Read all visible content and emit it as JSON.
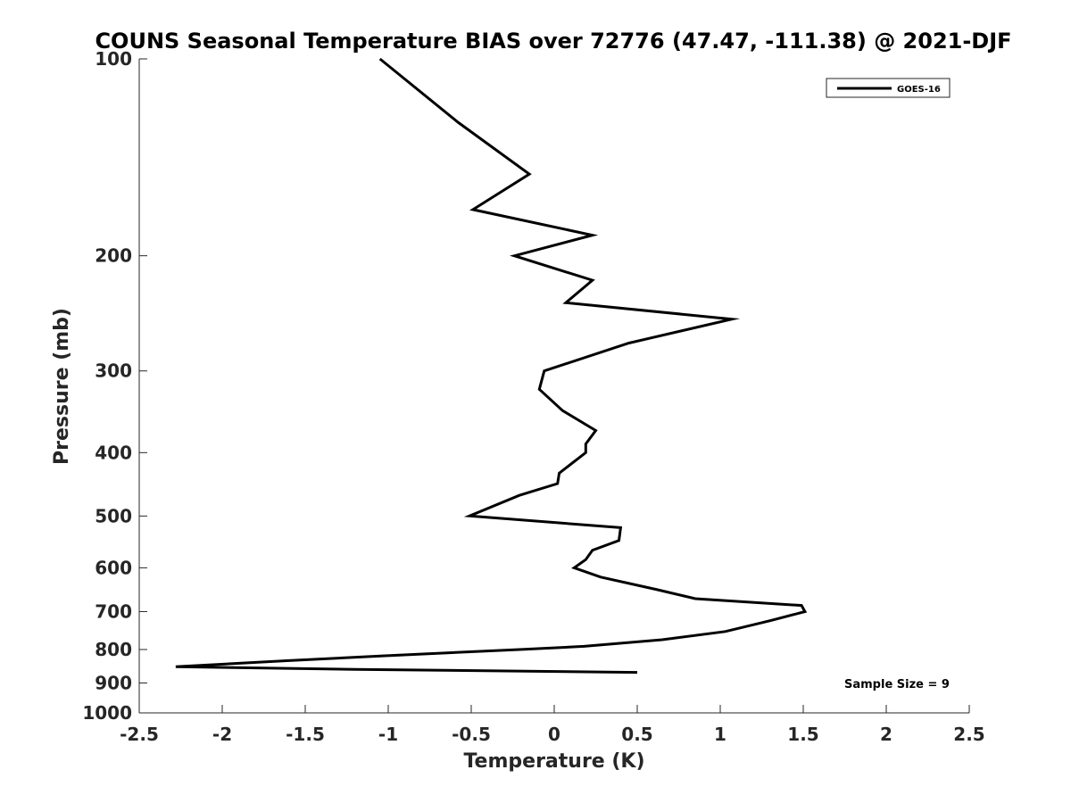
{
  "chart_data": {
    "type": "line",
    "title": "COUNS Seasonal Temperature BIAS over 72776 (47.47, -111.38) @ 2021-DJF",
    "xlabel": "Temperature (K)",
    "ylabel": "Pressure (mb)",
    "xlim": [
      -2.5,
      2.5
    ],
    "ylim": [
      100,
      1000
    ],
    "y_scale": "log",
    "y_reversed": true,
    "x_ticks": [
      "-2.5",
      "-2",
      "-1.5",
      "-1",
      "-0.5",
      "0",
      "0.5",
      "1",
      "1.5",
      "2",
      "2.5"
    ],
    "x_tick_values": [
      -2.5,
      -2,
      -1.5,
      -1,
      -0.5,
      0,
      0.5,
      1,
      1.5,
      2,
      2.5
    ],
    "y_ticks": [
      "100",
      "200",
      "300",
      "400",
      "500",
      "600",
      "700",
      "800",
      "900",
      "1000"
    ],
    "y_tick_values": [
      100,
      200,
      300,
      400,
      500,
      600,
      700,
      800,
      900,
      1000
    ],
    "grid": false,
    "legend_position": "top-right",
    "series": [
      {
        "name": "GOES-16",
        "color": "#000000",
        "points": [
          [
            -1.05,
            100
          ],
          [
            -0.58,
            125
          ],
          [
            -0.15,
            150
          ],
          [
            -0.49,
            170
          ],
          [
            0.23,
            186
          ],
          [
            -0.24,
            200
          ],
          [
            0.23,
            218
          ],
          [
            0.07,
            236
          ],
          [
            1.07,
            250
          ],
          [
            0.45,
            272
          ],
          [
            -0.06,
            300
          ],
          [
            -0.09,
            320
          ],
          [
            0.05,
            345
          ],
          [
            0.25,
            370
          ],
          [
            0.19,
            388
          ],
          [
            0.19,
            400
          ],
          [
            0.03,
            430
          ],
          [
            0.02,
            446
          ],
          [
            -0.21,
            465
          ],
          [
            -0.51,
            500
          ],
          [
            0.4,
            521
          ],
          [
            0.39,
            545
          ],
          [
            0.23,
            564
          ],
          [
            0.19,
            583
          ],
          [
            0.12,
            600
          ],
          [
            0.28,
            620
          ],
          [
            0.62,
            648
          ],
          [
            0.85,
            669
          ],
          [
            1.49,
            685
          ],
          [
            1.51,
            700
          ],
          [
            1.3,
            723
          ],
          [
            1.03,
            751
          ],
          [
            0.65,
            773
          ],
          [
            0.18,
            791
          ],
          [
            -0.21,
            800
          ],
          [
            -1.02,
            818
          ],
          [
            -1.61,
            832
          ],
          [
            -2.28,
            850
          ],
          [
            -1.2,
            858
          ],
          [
            0.5,
            867
          ]
        ]
      }
    ],
    "annotations": [
      "Sample Size = 9"
    ]
  }
}
